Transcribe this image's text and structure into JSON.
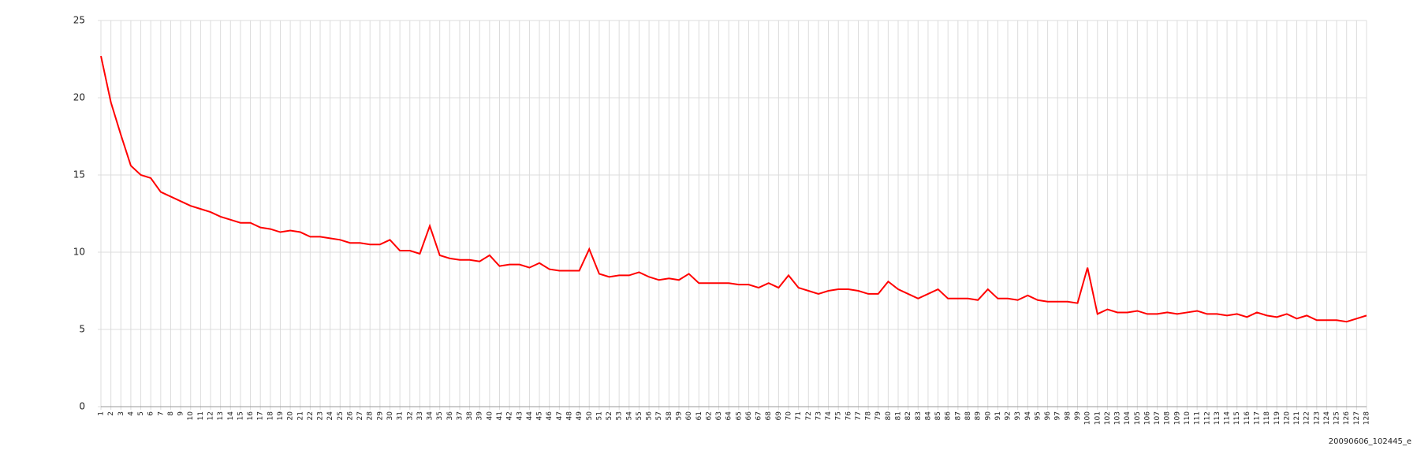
{
  "chart_data": {
    "type": "line",
    "categories": [
      "1",
      "2",
      "3",
      "4",
      "5",
      "6",
      "7",
      "8",
      "9",
      "10",
      "11",
      "12",
      "13",
      "14",
      "15",
      "16",
      "17",
      "18",
      "19",
      "20",
      "21",
      "22",
      "23",
      "24",
      "25",
      "26",
      "27",
      "28",
      "29",
      "30",
      "31",
      "32",
      "33",
      "34",
      "35",
      "36",
      "37",
      "38",
      "39",
      "40",
      "41",
      "42",
      "43",
      "44",
      "45",
      "46",
      "47",
      "48",
      "49",
      "50",
      "51",
      "52",
      "53",
      "54",
      "55",
      "56",
      "57",
      "58",
      "59",
      "60",
      "61",
      "62",
      "63",
      "64",
      "65",
      "66",
      "67",
      "68",
      "69",
      "70",
      "71",
      "72",
      "73",
      "74",
      "75",
      "76",
      "77",
      "78",
      "79",
      "80",
      "81",
      "82",
      "83",
      "84",
      "85",
      "86",
      "87",
      "88",
      "89",
      "90",
      "91",
      "92",
      "93",
      "94",
      "95",
      "96",
      "97",
      "98",
      "99",
      "100",
      "101",
      "102",
      "103",
      "104",
      "105",
      "106",
      "107",
      "108",
      "109",
      "110",
      "111",
      "112",
      "113",
      "114",
      "115",
      "116",
      "117",
      "118",
      "119",
      "120",
      "121",
      "122",
      "123",
      "124",
      "125",
      "126",
      "127",
      "128"
    ],
    "values": [
      22.7,
      19.7,
      17.6,
      15.6,
      15.0,
      14.8,
      13.9,
      13.6,
      13.3,
      13.0,
      12.8,
      12.6,
      12.3,
      12.1,
      11.9,
      11.9,
      11.6,
      11.5,
      11.3,
      11.4,
      11.3,
      11.0,
      11.0,
      10.9,
      10.8,
      10.6,
      10.6,
      10.5,
      10.5,
      10.8,
      10.1,
      10.1,
      9.9,
      11.7,
      9.8,
      9.6,
      9.5,
      9.5,
      9.4,
      9.8,
      9.1,
      9.2,
      9.2,
      9.0,
      9.3,
      8.9,
      8.8,
      8.8,
      8.8,
      10.2,
      8.6,
      8.4,
      8.5,
      8.5,
      8.7,
      8.4,
      8.2,
      8.3,
      8.2,
      8.6,
      8.0,
      8.0,
      8.0,
      8.0,
      7.9,
      7.9,
      7.7,
      8.0,
      7.7,
      8.5,
      7.7,
      7.5,
      7.3,
      7.5,
      7.6,
      7.6,
      7.5,
      7.3,
      7.3,
      8.1,
      7.6,
      7.3,
      7.0,
      7.3,
      7.6,
      7.0,
      7.0,
      7.0,
      6.9,
      7.6,
      7.0,
      7.0,
      6.9,
      7.2,
      6.9,
      6.8,
      6.8,
      6.8,
      6.7,
      9.0,
      6.0,
      6.3,
      6.1,
      6.1,
      6.2,
      6.0,
      6.0,
      6.1,
      6.0,
      6.1,
      6.2,
      6.0,
      6.0,
      5.9,
      6.0,
      5.8,
      6.1,
      5.9,
      5.8,
      6.0,
      5.7,
      5.9,
      5.6,
      5.6,
      5.6,
      5.5,
      5.7,
      5.9
    ],
    "color": "#ff0000",
    "ylim": [
      0,
      25
    ],
    "yticks": [
      0,
      5,
      10,
      15,
      20,
      25
    ],
    "grid": true,
    "footer": "20090606_102445_e"
  }
}
